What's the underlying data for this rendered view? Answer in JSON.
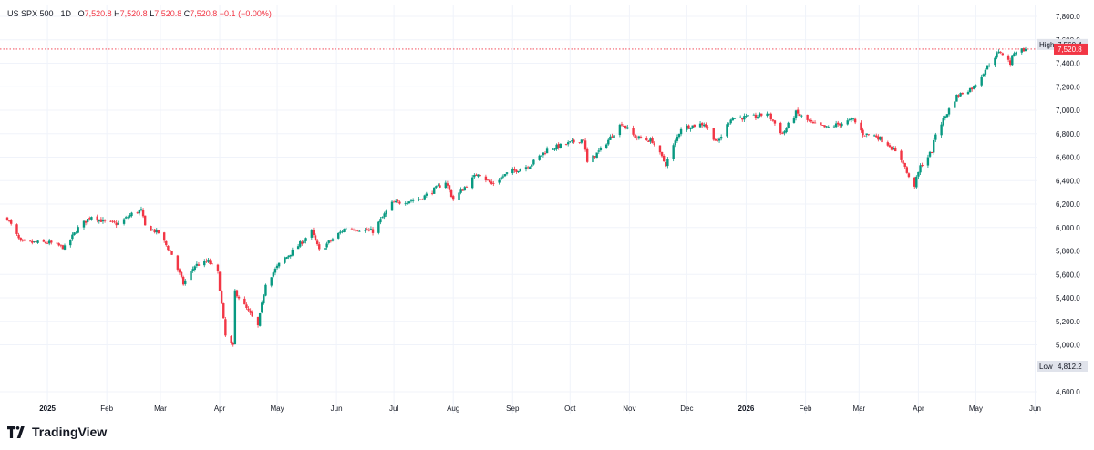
{
  "legend": {
    "symbol": "US SPX 500",
    "interval": "1D",
    "o_label": "O",
    "o": "7,520.8",
    "h_label": "H",
    "h": "7,520.8",
    "l_label": "L",
    "l": "7,520.8",
    "c_label": "C",
    "c": "7,520.8",
    "change": "−0.1 (−0.00%)"
  },
  "brand": {
    "name": "TradingView",
    "icon": "tradingview-logo-icon"
  },
  "colors": {
    "up": "#089981",
    "down": "#f23645",
    "grid": "#f0f3fa",
    "high_badge": "#e0e3eb",
    "price_badge": "#f23645"
  },
  "chart_data": {
    "type": "candlestick",
    "symbol": "US SPX 500",
    "interval": "1D",
    "x_ticks": [
      "2025",
      "Feb",
      "Mar",
      "Apr",
      "May",
      "Jun",
      "Jul",
      "Aug",
      "Sep",
      "Oct",
      "Nov",
      "Dec",
      "2026",
      "Feb",
      "Mar",
      "Apr",
      "May",
      "Jun"
    ],
    "x_ticks_bold": [
      "2025",
      "2026"
    ],
    "y_ticks": [
      "7,800.0",
      "7,600.0",
      "7,400.0",
      "7,200.0",
      "7,000.0",
      "6,800.0",
      "6,600.0",
      "6,400.0",
      "6,200.0",
      "6,000.0",
      "5,800.0",
      "5,600.0",
      "5,400.0",
      "5,200.0",
      "5,000.0",
      "4,600.0"
    ],
    "ylim": [
      4480,
      7900
    ],
    "grid": true,
    "high_label": "High",
    "high_value": "7,560.4",
    "low_label": "Low",
    "low_value": "4,812.2",
    "last_price_label": "7,520.8",
    "close_path": [
      [
        "2024-12-11",
        6080
      ],
      [
        "2024-12-18",
        5872
      ],
      [
        "2025-01-02",
        5870
      ],
      [
        "2025-01-10",
        5828
      ],
      [
        "2025-01-17",
        5995
      ],
      [
        "2025-01-24",
        6100
      ],
      [
        "2025-01-31",
        6045
      ],
      [
        "2025-02-07",
        6030
      ],
      [
        "2025-02-14",
        6115
      ],
      [
        "2025-02-19",
        6145
      ],
      [
        "2025-02-21",
        6010
      ],
      [
        "2025-02-28",
        5955
      ],
      [
        "2025-03-07",
        5770
      ],
      [
        "2025-03-13",
        5520
      ],
      [
        "2025-03-19",
        5675
      ],
      [
        "2025-03-26",
        5712
      ],
      [
        "2025-03-31",
        5611
      ],
      [
        "2025-04-04",
        5074
      ],
      [
        "2025-04-08",
        4982
      ],
      [
        "2025-04-09",
        5456
      ],
      [
        "2025-04-21",
        5158
      ],
      [
        "2025-04-25",
        5525
      ],
      [
        "2025-05-02",
        5686
      ],
      [
        "2025-05-12",
        5845
      ],
      [
        "2025-05-19",
        5963
      ],
      [
        "2025-05-23",
        5803
      ],
      [
        "2025-06-06",
        6000
      ],
      [
        "2025-06-20",
        5968
      ],
      [
        "2025-06-30",
        6205
      ],
      [
        "2025-07-15",
        6245
      ],
      [
        "2025-07-28",
        6390
      ],
      [
        "2025-08-01",
        6238
      ],
      [
        "2025-08-14",
        6468
      ],
      [
        "2025-08-21",
        6370
      ],
      [
        "2025-08-29",
        6460
      ],
      [
        "2025-09-10",
        6532
      ],
      [
        "2025-09-19",
        6664
      ],
      [
        "2025-10-08",
        6753
      ],
      [
        "2025-10-10",
        6552
      ],
      [
        "2025-10-17",
        6664
      ],
      [
        "2025-10-28",
        6890
      ],
      [
        "2025-11-04",
        6771
      ],
      [
        "2025-11-13",
        6737
      ],
      [
        "2025-11-20",
        6538
      ],
      [
        "2025-11-28",
        6849
      ],
      [
        "2025-12-10",
        6886
      ],
      [
        "2025-12-17",
        6721
      ],
      [
        "2025-12-24",
        6932
      ],
      [
        "2026-01-06",
        6944
      ],
      [
        "2026-01-12",
        6977
      ],
      [
        "2026-01-20",
        6796
      ],
      [
        "2026-01-27",
        6978
      ],
      [
        "2026-02-05",
        6880
      ],
      [
        "2026-02-12",
        6850
      ],
      [
        "2026-02-18",
        6880
      ],
      [
        "2026-02-26",
        6920
      ],
      [
        "2026-03-03",
        6800
      ],
      [
        "2026-03-10",
        6780
      ],
      [
        "2026-03-17",
        6700
      ],
      [
        "2026-03-24",
        6560
      ],
      [
        "2026-03-27",
        6420
      ],
      [
        "2026-03-30",
        6362
      ],
      [
        "2026-04-02",
        6520
      ],
      [
        "2026-04-08",
        6650
      ],
      [
        "2026-04-10",
        6800
      ],
      [
        "2026-04-15",
        6950
      ],
      [
        "2026-04-21",
        7120
      ],
      [
        "2026-04-30",
        7200
      ],
      [
        "2026-05-06",
        7350
      ],
      [
        "2026-05-11",
        7460
      ],
      [
        "2026-05-14",
        7500
      ],
      [
        "2026-05-19",
        7400
      ],
      [
        "2026-05-21",
        7500
      ],
      [
        "2026-05-27",
        7521
      ]
    ]
  }
}
